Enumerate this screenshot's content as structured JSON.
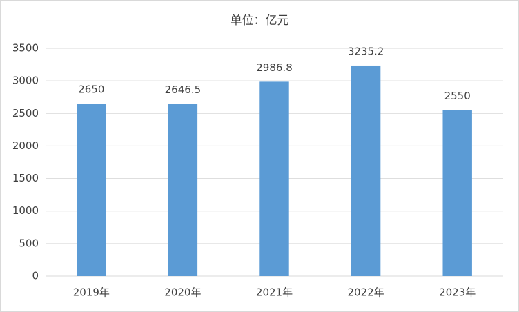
{
  "chart_data": {
    "type": "bar",
    "title": "单位：亿元",
    "categories": [
      "2019年",
      "2020年",
      "2021年",
      "2022年",
      "2023年"
    ],
    "values": [
      2650,
      2646.5,
      2986.8,
      3235.2,
      2550
    ],
    "color": "#5b9bd5",
    "ylim": [
      0,
      3500
    ],
    "yticks": [
      0,
      500,
      1000,
      1500,
      2000,
      2500,
      3000,
      3500
    ],
    "grid": true
  }
}
